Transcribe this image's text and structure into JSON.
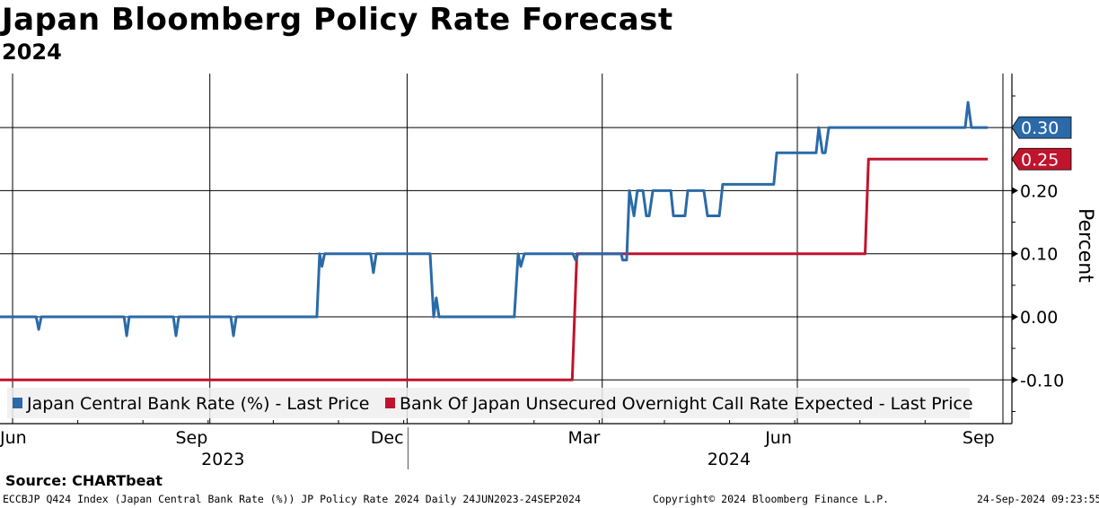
{
  "chart_data": {
    "type": "line",
    "title": "Japan Bloomberg Policy Rate Forecast",
    "subtitle": "2024",
    "ylabel": "Percent",
    "xlabel": "",
    "x_unit": "days since 24-Jun-2023",
    "xlim": [
      0,
      462
    ],
    "ylim": [
      -0.17,
      0.386
    ],
    "y_ticks": [
      -0.1,
      0.0,
      0.1,
      0.2
    ],
    "y_tick_labels": [
      "-0.10",
      "0.00",
      "0.10",
      "0.20"
    ],
    "x_month_labels": [
      {
        "label": "Jun",
        "day": -9
      },
      {
        "label": "Sep",
        "day": 83
      },
      {
        "label": "Dec",
        "day": 174
      },
      {
        "label": "Mar",
        "day": 266
      },
      {
        "label": "Jun",
        "day": 358
      },
      {
        "label": "Sep",
        "day": 450
      }
    ],
    "x_year_labels": [
      {
        "label": "2023",
        "day": 95
      },
      {
        "label": "2024",
        "day": 331
      }
    ],
    "year_divider_day": 191,
    "x_gridlines_days": [
      7,
      99,
      191,
      282,
      373
    ],
    "grid": true,
    "legend_position": "bottom-left",
    "series": [
      {
        "name": "Japan Central Bank Rate (%) - Last Price",
        "color": "#2b6aa8",
        "last_value_label": "0.30",
        "points": [
          [
            0,
            0
          ],
          [
            18,
            0
          ],
          [
            19.2,
            -0.02
          ],
          [
            20.4,
            0
          ],
          [
            59,
            0
          ],
          [
            60.2,
            -0.03
          ],
          [
            61.4,
            0
          ],
          [
            82,
            0
          ],
          [
            83.2,
            -0.03
          ],
          [
            84.5,
            0
          ],
          [
            108.8,
            0
          ],
          [
            110,
            -0.03
          ],
          [
            111.3,
            0
          ],
          [
            148.9,
            0
          ],
          [
            150.2,
            0.1
          ],
          [
            151.3,
            0.08
          ],
          [
            152.5,
            0.1
          ],
          [
            174,
            0.1
          ],
          [
            175.3,
            0.07
          ],
          [
            176.6,
            0.1
          ],
          [
            201.7,
            0.1
          ],
          [
            203.4,
            0
          ],
          [
            204.6,
            0.03
          ],
          [
            205.9,
            0
          ],
          [
            241,
            0
          ],
          [
            242.8,
            0.1
          ],
          [
            244,
            0.08
          ],
          [
            245.7,
            0.1
          ],
          [
            268.3,
            0.1
          ],
          [
            269.6,
            0.09
          ],
          [
            270.8,
            0.1
          ],
          [
            290.9,
            0.1
          ],
          [
            291.5,
            0.09
          ],
          [
            293.4,
            0.09
          ],
          [
            294.7,
            0.2
          ],
          [
            296.8,
            0.16
          ],
          [
            298.4,
            0.2
          ],
          [
            301,
            0.2
          ],
          [
            302.6,
            0.16
          ],
          [
            303.9,
            0.16
          ],
          [
            305.6,
            0.2
          ],
          [
            314,
            0.2
          ],
          [
            315.2,
            0.16
          ],
          [
            320.6,
            0.16
          ],
          [
            321.9,
            0.2
          ],
          [
            329.4,
            0.2
          ],
          [
            331.1,
            0.16
          ],
          [
            336.6,
            0.16
          ],
          [
            338.2,
            0.21
          ],
          [
            362,
            0.21
          ],
          [
            363.4,
            0.26
          ],
          [
            381.8,
            0.26
          ],
          [
            383,
            0.3
          ],
          [
            384.7,
            0.26
          ],
          [
            386,
            0.26
          ],
          [
            387.7,
            0.3
          ],
          [
            451.3,
            0.3
          ],
          [
            452.6,
            0.34
          ],
          [
            454.2,
            0.3
          ],
          [
            461.8,
            0.3
          ]
        ]
      },
      {
        "name": "Bank Of Japan Unsecured Overnight Call Rate Expected - Last Price",
        "color": "#c0142d",
        "last_value_label": "0.25",
        "points": [
          [
            0,
            -0.1
          ],
          [
            268,
            -0.1
          ],
          [
            270.2,
            0.1
          ],
          [
            404.6,
            0.1
          ],
          [
            406.2,
            0.25
          ],
          [
            461.8,
            0.25
          ]
        ]
      }
    ]
  },
  "source": "Source: CHARTbeat",
  "footer": {
    "left": "ECCBJP Q424 Index (Japan Central Bank Rate (%)) JP Policy Rate 2024  Daily 24JUN2023-24SEP2024",
    "center": "Copyright© 2024 Bloomberg Finance L.P.",
    "right": "24-Sep-2024 09:23:55"
  }
}
